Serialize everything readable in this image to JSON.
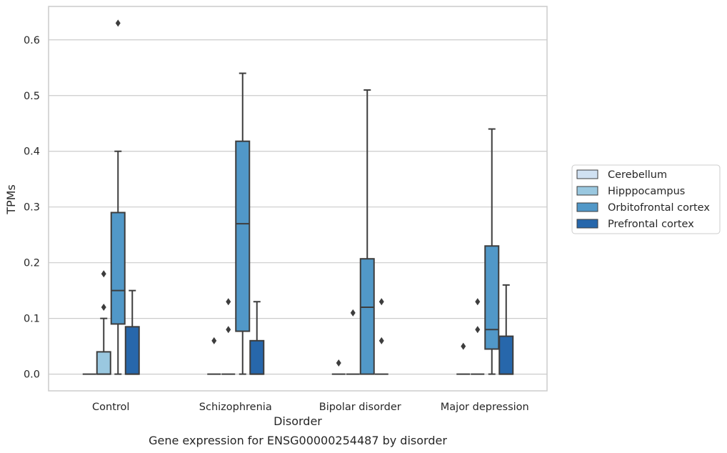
{
  "chart_data": {
    "type": "box",
    "title": "",
    "caption": "Gene expression for ENSG00000254487 by disorder",
    "xlabel": "Disorder",
    "ylabel": "TPMs",
    "ylim": [
      -0.03,
      0.66
    ],
    "yticks": [
      0.0,
      0.1,
      0.2,
      0.3,
      0.4,
      0.5,
      0.6
    ],
    "grid": "horizontal",
    "legend_position": "right",
    "categories": [
      "Control",
      "Schizophrenia",
      "Bipolar disorder",
      "Major depression"
    ],
    "series": [
      {
        "name": "Cerebellum",
        "color": "#d0e1f2",
        "boxes": [
          {
            "q1": 0.0,
            "median": 0.0,
            "q3": 0.0,
            "whisker_low": 0.0,
            "whisker_high": 0.0,
            "outliers": []
          },
          {
            "q1": 0.0,
            "median": 0.0,
            "q3": 0.0,
            "whisker_low": 0.0,
            "whisker_high": 0.0,
            "outliers": [
              0.06
            ]
          },
          {
            "q1": 0.0,
            "median": 0.0,
            "q3": 0.0,
            "whisker_low": 0.0,
            "whisker_high": 0.0,
            "outliers": [
              0.02
            ]
          },
          {
            "q1": 0.0,
            "median": 0.0,
            "q3": 0.0,
            "whisker_low": 0.0,
            "whisker_high": 0.0,
            "outliers": [
              0.05
            ]
          }
        ]
      },
      {
        "name": "Hipppocampus",
        "color": "#9ac8e0",
        "boxes": [
          {
            "q1": 0.0,
            "median": 0.0,
            "q3": 0.04,
            "whisker_low": 0.0,
            "whisker_high": 0.1,
            "outliers": [
              0.12,
              0.18
            ]
          },
          {
            "q1": 0.0,
            "median": 0.0,
            "q3": 0.0,
            "whisker_low": 0.0,
            "whisker_high": 0.0,
            "outliers": [
              0.08,
              0.13
            ]
          },
          {
            "q1": 0.0,
            "median": 0.0,
            "q3": 0.0,
            "whisker_low": 0.0,
            "whisker_high": 0.0,
            "outliers": [
              0.11
            ]
          },
          {
            "q1": 0.0,
            "median": 0.0,
            "q3": 0.0,
            "whisker_low": 0.0,
            "whisker_high": 0.0,
            "outliers": [
              0.08,
              0.13
            ]
          }
        ]
      },
      {
        "name": "Orbitofrontal cortex",
        "color": "#5198c8",
        "boxes": [
          {
            "q1": 0.09,
            "median": 0.15,
            "q3": 0.29,
            "whisker_low": 0.0,
            "whisker_high": 0.4,
            "outliers": [
              0.63
            ]
          },
          {
            "q1": 0.077,
            "median": 0.27,
            "q3": 0.418,
            "whisker_low": 0.0,
            "whisker_high": 0.54,
            "outliers": []
          },
          {
            "q1": 0.0,
            "median": 0.12,
            "q3": 0.207,
            "whisker_low": 0.0,
            "whisker_high": 0.51,
            "outliers": []
          },
          {
            "q1": 0.045,
            "median": 0.08,
            "q3": 0.23,
            "whisker_low": 0.0,
            "whisker_high": 0.44,
            "outliers": []
          }
        ]
      },
      {
        "name": "Prefrontal cortex",
        "color": "#2767ab",
        "boxes": [
          {
            "q1": 0.0,
            "median": 0.0,
            "q3": 0.085,
            "whisker_low": 0.0,
            "whisker_high": 0.15,
            "outliers": []
          },
          {
            "q1": 0.0,
            "median": 0.0,
            "q3": 0.06,
            "whisker_low": 0.0,
            "whisker_high": 0.13,
            "outliers": []
          },
          {
            "q1": 0.0,
            "median": 0.0,
            "q3": 0.0,
            "whisker_low": 0.0,
            "whisker_high": 0.0,
            "outliers": [
              0.06,
              0.13
            ]
          },
          {
            "q1": 0.0,
            "median": 0.0,
            "q3": 0.068,
            "whisker_low": 0.0,
            "whisker_high": 0.16,
            "outliers": []
          }
        ]
      }
    ]
  }
}
